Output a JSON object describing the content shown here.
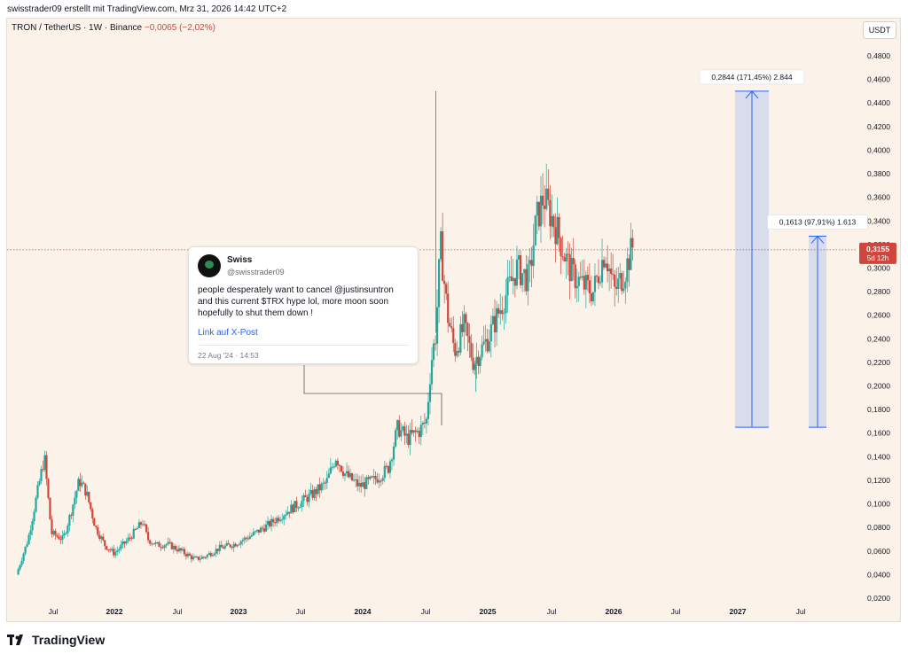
{
  "header": {
    "watermark": "swisstrader09 erstellt mit TradingView.com, Mrz 31, 2026 14:42 UTC+2"
  },
  "legend": {
    "symbol": "TRON / TetherUS · 1W · Binance",
    "change": "−0,0065 (−2,02%)"
  },
  "toolbar": {
    "currency": "USDT"
  },
  "price_label": {
    "value": "0,3155",
    "countdown": "5d 12h",
    "color": "#d0463c"
  },
  "measurements": [
    {
      "label": "0,2844 (171,45%) 2.844",
      "from": 0.165,
      "to": 0.45
    },
    {
      "label": "0,1613 (97,91%) 1.613",
      "from": 0.165,
      "to": 0.327
    }
  ],
  "post": {
    "name": "Swiss",
    "handle": "@swisstrader09",
    "text": "people desperately want to cancel @justinsuntron and this current $TRX hype lol, more moon soon hopefully to shut them down !",
    "link_label": "Link auf X-Post",
    "date": "22 Aug '24 · 14:53"
  },
  "footer": {
    "brand": "TradingView"
  },
  "colors": {
    "up": "#26a69a",
    "down": "#d0463c",
    "measure": "#2962ff"
  },
  "chart_data": {
    "type": "candlestick",
    "y_ticks": [
      "0,4800",
      "0,4600",
      "0,4400",
      "0,4200",
      "0,4000",
      "0,3800",
      "0,3600",
      "0,3400",
      "0,3200",
      "0,3000",
      "0,2800",
      "0,2600",
      "0,2400",
      "0,2200",
      "0,2000",
      "0,1800",
      "0,1600",
      "0,1400",
      "0,1200",
      "0,1000",
      "0,0800",
      "0,0600",
      "0,0400",
      "0,0200"
    ],
    "x_ticks": [
      "Jul",
      "2022",
      "Jul",
      "2023",
      "Jul",
      "2024",
      "Jul",
      "2025",
      "Jul",
      "2026",
      "Jul",
      "2027",
      "Jul"
    ],
    "ylim": [
      0.012,
      0.492
    ],
    "last_price": 0.3155,
    "close_path": [
      [
        0.0,
        0.04
      ],
      [
        0.5,
        0.07
      ],
      [
        1.2,
        0.14
      ],
      [
        1.5,
        0.075
      ],
      [
        2.0,
        0.07
      ],
      [
        2.3,
        0.09
      ],
      [
        2.7,
        0.12
      ],
      [
        3.0,
        0.11
      ],
      [
        3.4,
        0.08
      ],
      [
        3.8,
        0.065
      ],
      [
        4.2,
        0.058
      ],
      [
        4.8,
        0.07
      ],
      [
        5.4,
        0.085
      ],
      [
        5.6,
        0.07
      ],
      [
        6.0,
        0.065
      ],
      [
        6.4,
        0.066
      ],
      [
        7.0,
        0.06
      ],
      [
        7.6,
        0.053
      ],
      [
        8.0,
        0.055
      ],
      [
        8.6,
        0.062
      ],
      [
        9.3,
        0.066
      ],
      [
        10.0,
        0.073
      ],
      [
        10.8,
        0.083
      ],
      [
        11.4,
        0.092
      ],
      [
        12.0,
        0.1
      ],
      [
        12.6,
        0.108
      ],
      [
        13.2,
        0.118
      ],
      [
        13.6,
        0.14
      ],
      [
        14.0,
        0.125
      ],
      [
        14.6,
        0.115
      ],
      [
        15.2,
        0.12
      ],
      [
        15.8,
        0.13
      ],
      [
        16.2,
        0.165
      ],
      [
        16.6,
        0.155
      ],
      [
        17.1,
        0.162
      ],
      [
        17.4,
        0.17
      ],
      [
        17.6,
        0.22
      ],
      [
        17.8,
        0.245
      ],
      [
        18.0,
        0.32
      ],
      [
        18.3,
        0.26
      ],
      [
        18.6,
        0.23
      ],
      [
        19.0,
        0.25
      ],
      [
        19.4,
        0.22
      ],
      [
        20.0,
        0.24
      ],
      [
        20.6,
        0.27
      ],
      [
        21.2,
        0.3
      ],
      [
        21.7,
        0.29
      ],
      [
        22.0,
        0.34
      ],
      [
        22.3,
        0.36
      ],
      [
        22.6,
        0.345
      ],
      [
        22.9,
        0.33
      ],
      [
        23.2,
        0.31
      ],
      [
        23.5,
        0.295
      ],
      [
        24.0,
        0.285
      ],
      [
        24.4,
        0.28
      ],
      [
        24.9,
        0.315
      ],
      [
        25.3,
        0.28
      ],
      [
        25.7,
        0.295
      ],
      [
        26.1,
        0.32
      ]
    ],
    "spikes": [
      [
        17.8,
        0.45
      ],
      [
        22.4,
        0.365
      ],
      [
        19.5,
        0.195
      ]
    ]
  }
}
